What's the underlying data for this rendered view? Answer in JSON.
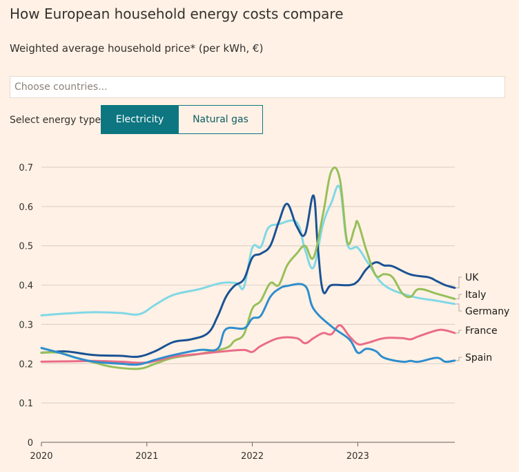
{
  "title": "How European household energy costs compare",
  "subtitle": "Weighted average household price* (per kWh, €)",
  "search": {
    "placeholder": "Choose countries..."
  },
  "energy_type": {
    "label": "Select energy type:",
    "options": [
      "Electricity",
      "Natural gas"
    ],
    "selected": "Electricity"
  },
  "chart_data": {
    "type": "line",
    "title": "",
    "xlabel": "",
    "ylabel": "",
    "xlim": [
      2020.0,
      2023.92
    ],
    "ylim": [
      0,
      0.7
    ],
    "x_ticks": [
      "2020",
      "2021",
      "2022",
      "2023"
    ],
    "y_ticks": [
      "0",
      "0.1",
      "0.2",
      "0.3",
      "0.4",
      "0.5",
      "0.6",
      "0.7"
    ],
    "grid": true,
    "legend": "direct labels at line ends (right)",
    "series": [
      {
        "name": "Germany",
        "color": "#7fd8e6",
        "x": [
          2020.0,
          2020.25,
          2020.5,
          2020.75,
          2020.93,
          2021.08,
          2021.25,
          2021.5,
          2021.7,
          2021.85,
          2021.92,
          2022.0,
          2022.08,
          2022.15,
          2022.25,
          2022.42,
          2022.5,
          2022.58,
          2022.67,
          2022.75,
          2022.83,
          2022.9,
          2023.0,
          2023.1,
          2023.25,
          2023.5,
          2023.75,
          2023.92
        ],
        "y": [
          0.323,
          0.328,
          0.331,
          0.329,
          0.326,
          0.35,
          0.375,
          0.39,
          0.405,
          0.405,
          0.395,
          0.495,
          0.497,
          0.545,
          0.555,
          0.56,
          0.49,
          0.445,
          0.555,
          0.61,
          0.648,
          0.505,
          0.495,
          0.455,
          0.4,
          0.372,
          0.36,
          0.352
        ]
      },
      {
        "name": "UK",
        "color": "#1a5294",
        "x": [
          2020.0,
          2020.12,
          2020.25,
          2020.5,
          2020.75,
          2020.92,
          2021.08,
          2021.25,
          2021.42,
          2021.58,
          2021.67,
          2021.75,
          2021.83,
          2021.92,
          2022.0,
          2022.08,
          2022.17,
          2022.25,
          2022.33,
          2022.42,
          2022.5,
          2022.58,
          2022.62,
          2022.67,
          2022.75,
          2022.92,
          2023.0,
          2023.08,
          2023.17,
          2023.25,
          2023.33,
          2023.5,
          2023.67,
          2023.75,
          2023.83,
          2023.92
        ],
        "y": [
          0.228,
          0.23,
          0.231,
          0.222,
          0.22,
          0.218,
          0.232,
          0.255,
          0.262,
          0.278,
          0.32,
          0.37,
          0.398,
          0.415,
          0.47,
          0.48,
          0.5,
          0.56,
          0.607,
          0.55,
          0.53,
          0.628,
          0.5,
          0.385,
          0.4,
          0.4,
          0.41,
          0.44,
          0.458,
          0.45,
          0.448,
          0.427,
          0.42,
          0.41,
          0.4,
          0.393
        ]
      },
      {
        "name": "Italy",
        "color": "#96bf5a",
        "x": [
          2020.0,
          2020.17,
          2020.33,
          2020.5,
          2020.67,
          2020.92,
          2021.08,
          2021.25,
          2021.5,
          2021.75,
          2021.83,
          2021.92,
          2022.0,
          2022.08,
          2022.17,
          2022.25,
          2022.33,
          2022.42,
          2022.5,
          2022.58,
          2022.67,
          2022.75,
          2022.83,
          2022.9,
          2022.97,
          2023.0,
          2023.08,
          2023.17,
          2023.25,
          2023.33,
          2023.42,
          2023.5,
          2023.58,
          2023.75,
          2023.92
        ],
        "y": [
          0.228,
          0.228,
          0.215,
          0.203,
          0.192,
          0.187,
          0.2,
          0.215,
          0.225,
          0.24,
          0.258,
          0.275,
          0.34,
          0.36,
          0.405,
          0.4,
          0.45,
          0.48,
          0.5,
          0.47,
          0.58,
          0.69,
          0.67,
          0.51,
          0.545,
          0.56,
          0.49,
          0.425,
          0.428,
          0.42,
          0.38,
          0.37,
          0.39,
          0.378,
          0.365
        ]
      },
      {
        "name": "France",
        "color": "#ea6c87",
        "x": [
          2020.0,
          2020.25,
          2020.5,
          2020.75,
          2021.0,
          2021.25,
          2021.5,
          2021.75,
          2021.92,
          2022.0,
          2022.08,
          2022.25,
          2022.42,
          2022.5,
          2022.58,
          2022.67,
          2022.75,
          2022.83,
          2022.92,
          2023.0,
          2023.08,
          2023.25,
          2023.42,
          2023.5,
          2023.58,
          2023.75,
          2023.83,
          2023.92
        ],
        "y": [
          0.205,
          0.206,
          0.207,
          0.205,
          0.203,
          0.218,
          0.225,
          0.232,
          0.235,
          0.23,
          0.245,
          0.265,
          0.265,
          0.252,
          0.265,
          0.278,
          0.275,
          0.298,
          0.27,
          0.25,
          0.252,
          0.265,
          0.265,
          0.262,
          0.27,
          0.285,
          0.285,
          0.278
        ]
      },
      {
        "name": "Spain",
        "color": "#2e8dcc",
        "x": [
          2020.0,
          2020.17,
          2020.33,
          2020.5,
          2020.75,
          2020.92,
          2021.08,
          2021.25,
          2021.5,
          2021.67,
          2021.75,
          2021.92,
          2022.0,
          2022.08,
          2022.17,
          2022.25,
          2022.33,
          2022.5,
          2022.58,
          2022.75,
          2022.92,
          2023.0,
          2023.08,
          2023.17,
          2023.25,
          2023.42,
          2023.5,
          2023.58,
          2023.75,
          2023.83,
          2023.92
        ],
        "y": [
          0.24,
          0.228,
          0.215,
          0.205,
          0.2,
          0.198,
          0.21,
          0.222,
          0.235,
          0.238,
          0.288,
          0.29,
          0.315,
          0.322,
          0.37,
          0.39,
          0.398,
          0.398,
          0.34,
          0.295,
          0.262,
          0.228,
          0.238,
          0.232,
          0.215,
          0.205,
          0.207,
          0.205,
          0.215,
          0.205,
          0.208
        ]
      }
    ],
    "end_labels": [
      "UK",
      "Italy",
      "Germany",
      "France",
      "Spain"
    ]
  }
}
